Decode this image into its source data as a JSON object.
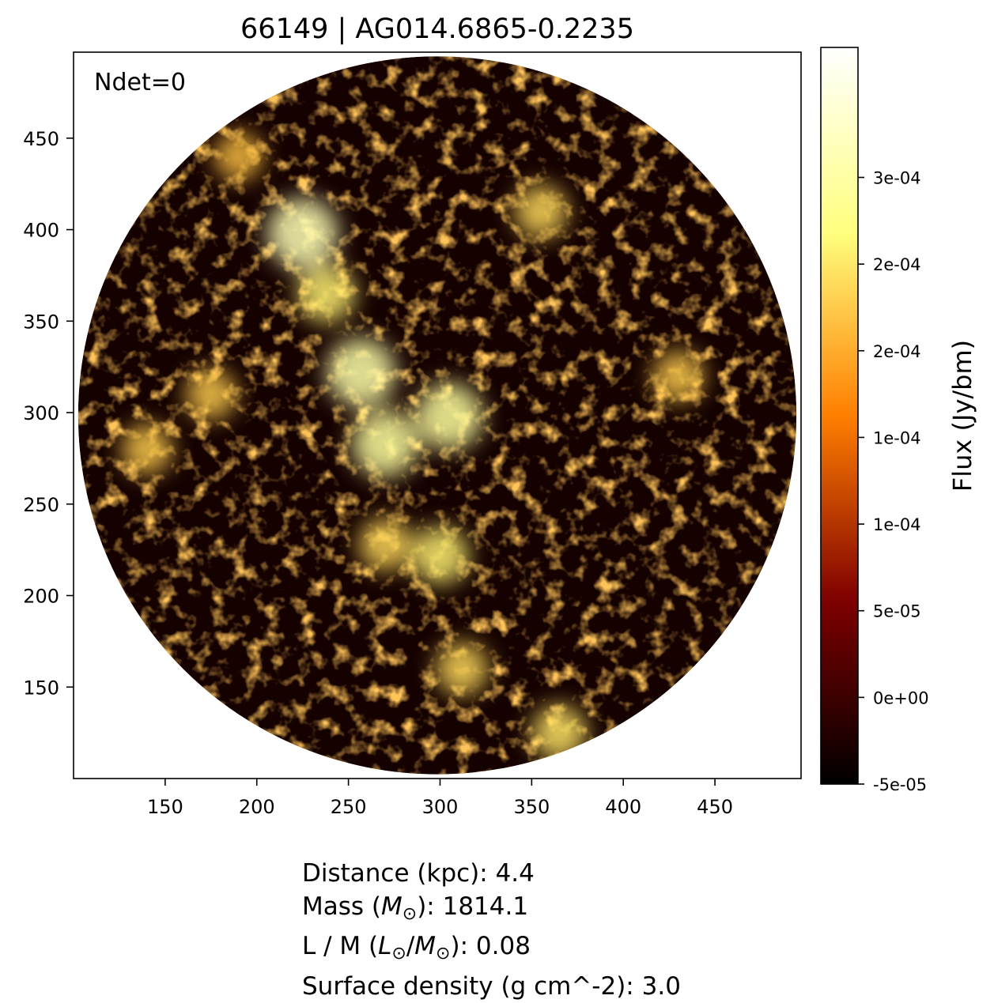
{
  "chart_data": {
    "type": "heatmap",
    "title": "66149 | AG014.6865-0.2235",
    "annotation": "Ndet=0",
    "xlim": [
      100,
      497
    ],
    "ylim": [
      100,
      497
    ],
    "x_ticks": [
      150,
      200,
      250,
      300,
      350,
      400,
      450
    ],
    "x_tick_labels": [
      "150",
      "200",
      "250",
      "300",
      "350",
      "400",
      "450"
    ],
    "y_ticks": [
      150,
      200,
      250,
      300,
      350,
      400,
      450
    ],
    "y_tick_labels": [
      "150",
      "200",
      "250",
      "300",
      "350",
      "400",
      "450"
    ],
    "map_center": [
      298.5,
      298.5
    ],
    "map_radius": 196,
    "colormap": "afmhot",
    "colorbar": {
      "label": "Flux (Jy/bm)",
      "vmin": -5e-05,
      "vmax": 0.000375,
      "ticks": [
        -5e-05,
        0,
        5e-05,
        0.0001,
        0.00015,
        0.0002,
        0.00025,
        0.0003
      ],
      "tick_labels": [
        "-5e-05",
        "0e+00",
        "5e-05",
        "1e-04",
        "1e-04",
        "2e-04",
        "2e-04",
        "3e-04"
      ]
    },
    "bright_regions": [
      {
        "x": 257,
        "y": 322,
        "level": 0.85
      },
      {
        "x": 305,
        "y": 298,
        "level": 0.8
      },
      {
        "x": 270,
        "y": 283,
        "level": 0.8
      },
      {
        "x": 225,
        "y": 398,
        "level": 0.9
      },
      {
        "x": 238,
        "y": 365,
        "level": 0.6
      },
      {
        "x": 300,
        "y": 222,
        "level": 0.6
      },
      {
        "x": 270,
        "y": 228,
        "level": 0.5
      },
      {
        "x": 312,
        "y": 160,
        "level": 0.5
      },
      {
        "x": 365,
        "y": 125,
        "level": 0.55
      },
      {
        "x": 355,
        "y": 410,
        "level": 0.5
      },
      {
        "x": 175,
        "y": 310,
        "level": 0.45
      },
      {
        "x": 140,
        "y": 280,
        "level": 0.45
      },
      {
        "x": 430,
        "y": 320,
        "level": 0.45
      },
      {
        "x": 190,
        "y": 440,
        "level": 0.4
      }
    ]
  },
  "info": {
    "distance": {
      "prefix": "Distance (kpc): ",
      "value": "4.4"
    },
    "mass": {
      "prefix": "Mass (",
      "symbol": "M",
      "subscript": "⊙",
      "suffix": "): ",
      "value": "1814.1"
    },
    "lm": {
      "prefix": "L / M (",
      "l_symbol": "L",
      "l_sub": "⊙",
      "sep": "/",
      "m_symbol": "M",
      "m_sub": "⊙",
      "suffix": "): ",
      "value": "0.08"
    },
    "surface_density": {
      "prefix": "Surface density (g cm^-2): ",
      "value": "3.0"
    }
  }
}
